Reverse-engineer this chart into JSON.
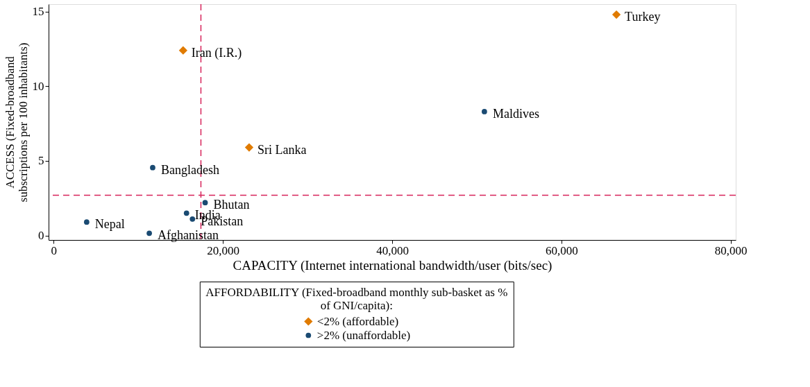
{
  "chart_data": {
    "type": "scatter",
    "xlabel": "CAPACITY (Internet international bandwidth/user (bits/sec)",
    "ylabel": "ACCESS (Fixed-broadband subscriptions per 100 inhabitants)",
    "legend_title": "AFFORDABILITY (Fixed-broadband monthly sub-basket as % of GNI/capita):",
    "series": [
      {
        "name": "<2% (affordable)",
        "color": "#e07b00",
        "marker": "diamond",
        "x": [
          66500,
          15300,
          23100
        ],
        "values": [
          14.8,
          12.4,
          5.9
        ]
      },
      {
        "name": ">2% (unaffordable)",
        "color": "#1a4a72",
        "marker": "circle",
        "x": [
          50900,
          11700,
          17900,
          15700,
          16400,
          3900,
          11300
        ],
        "values": [
          8.3,
          4.55,
          2.2,
          1.5,
          1.1,
          0.9,
          0.15
        ]
      }
    ],
    "annotations": [
      {
        "text": "Turkey",
        "x": 66500,
        "y": 14.8
      },
      {
        "text": "Iran (I.R.)",
        "x": 15300,
        "y": 12.4
      },
      {
        "text": "Sri Lanka",
        "x": 23100,
        "y": 5.9
      },
      {
        "text": "Maldives",
        "x": 50900,
        "y": 8.3
      },
      {
        "text": "Bangladesh",
        "x": 11700,
        "y": 4.55
      },
      {
        "text": "Bhutan",
        "x": 17900,
        "y": 2.2
      },
      {
        "text": "India",
        "x": 15700,
        "y": 1.5
      },
      {
        "text": "Pakistan",
        "x": 16400,
        "y": 1.1
      },
      {
        "text": "Nepal",
        "x": 3900,
        "y": 0.9
      },
      {
        "text": "Afghanistan",
        "x": 11300,
        "y": 0.15
      }
    ],
    "ref_lines": [
      {
        "axis": "x",
        "value": 17400,
        "color": "#d6225a",
        "line_style": "dashed"
      },
      {
        "axis": "y",
        "value": 2.7,
        "color": "#d6225a",
        "line_style": "dashed"
      }
    ],
    "xlim": [
      -600,
      80600
    ],
    "ylim": [
      -0.3,
      15.5
    ],
    "xticks": [
      0,
      {
        "value": 20000,
        "label": "20,000"
      },
      {
        "value": 40000,
        "label": "40,000"
      },
      {
        "value": 60000,
        "label": "60,000"
      },
      {
        "value": 80000,
        "label": "80,000"
      }
    ],
    "yticks": [
      0,
      5,
      10,
      15
    ],
    "grid": false,
    "legend": "bottom"
  }
}
